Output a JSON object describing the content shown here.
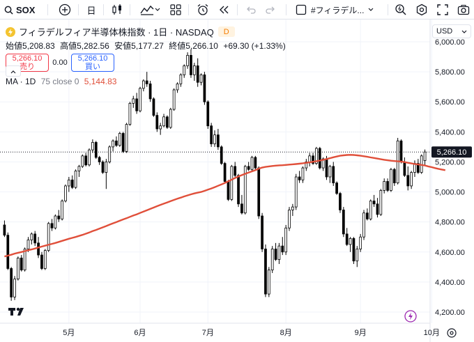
{
  "toolbar": {
    "symbol": "SOX",
    "interval": "日",
    "layout_name": "#フィラデル..."
  },
  "legend": {
    "title": "フィラデルフィア半導体株指数 · 1日 · NASDAQ",
    "badge": "D",
    "ohlc": {
      "open_label": "始値",
      "open": "5,208.83",
      "high_label": "高値",
      "high": "5,282.56",
      "low_label": "安値",
      "low": "5,177.27",
      "close_label": "終値",
      "close": "5,266.10",
      "change": "+69.30 (+1.33%)"
    },
    "sell_price": "5,266.10",
    "sell_label": "売り",
    "spread": "0.00",
    "buy_price": "5,266.10",
    "buy_label": "買い",
    "ma_label": "MA · 1D",
    "ma_params": "75 close 0",
    "ma_value": "5,144.83"
  },
  "currency": "USD",
  "colors": {
    "ma_line": "#e04f3a",
    "up_candle": "#ffffff",
    "down_candle": "#000000",
    "sell": "#f23645",
    "buy": "#2962ff"
  },
  "chart_data": {
    "type": "candlestick",
    "y_axis": {
      "range": [
        4120,
        6050
      ],
      "ticks": [
        "4,200.00",
        "4,400.00",
        "4,600.00",
        "4,800.00",
        "5,000.00",
        "5,200.00",
        "5,400.00",
        "5,600.00",
        "5,800.00",
        "6,000.00"
      ]
    },
    "x_axis": {
      "ticks": [
        "5月",
        "6月",
        "7月",
        "8月",
        "9月",
        "10月"
      ],
      "tick_index": [
        19,
        40,
        60,
        83,
        105,
        126
      ]
    },
    "last_price": 5266.1,
    "last_price_label": "5,266.10",
    "ma_series_name": "MA 75",
    "ma": [
      4570,
      4576,
      4582,
      4589,
      4595,
      4600,
      4606,
      4612,
      4617,
      4623,
      4630,
      4636,
      4642,
      4648,
      4654,
      4660,
      4667,
      4674,
      4681,
      4688,
      4694,
      4700,
      4707,
      4714,
      4722,
      4730,
      4739,
      4747,
      4756,
      4764,
      4773,
      4782,
      4791,
      4799,
      4808,
      4817,
      4825,
      4834,
      4843,
      4851,
      4860,
      4869,
      4878,
      4887,
      4896,
      4905,
      4914,
      4922,
      4930,
      4939,
      4947,
      4955,
      4962,
      4970,
      4977,
      4984,
      4990,
      4995,
      5000,
      5007,
      5015,
      5023,
      5032,
      5041,
      5050,
      5060,
      5071,
      5082,
      5093,
      5103,
      5112,
      5121,
      5129,
      5137,
      5145,
      5155,
      5162,
      5167,
      5170,
      5173,
      5175,
      5177,
      5178,
      5180,
      5182,
      5184,
      5186,
      5188,
      5191,
      5194,
      5197,
      5201,
      5205,
      5209,
      5214,
      5219,
      5225,
      5231,
      5236,
      5241,
      5244,
      5246,
      5247,
      5246,
      5244,
      5241,
      5238,
      5234,
      5230,
      5226,
      5222,
      5218,
      5214,
      5211,
      5208,
      5206,
      5204,
      5202,
      5199,
      5194,
      5190,
      5186,
      5183,
      5180,
      5176,
      5170,
      5165,
      5159,
      5154,
      5149,
      5145
    ],
    "candles": [
      [
        4780,
        4810,
        4700,
        4712
      ],
      [
        4712,
        4730,
        4480,
        4490
      ],
      [
        4490,
        4500,
        4275,
        4300
      ],
      [
        4300,
        4440,
        4280,
        4420
      ],
      [
        4420,
        4570,
        4410,
        4560
      ],
      [
        4560,
        4580,
        4470,
        4480
      ],
      [
        4480,
        4630,
        4470,
        4620
      ],
      [
        4620,
        4700,
        4600,
        4680
      ],
      [
        4680,
        4730,
        4650,
        4720
      ],
      [
        4720,
        4740,
        4640,
        4660
      ],
      [
        4660,
        4700,
        4560,
        4580
      ],
      [
        4580,
        4600,
        4480,
        4490
      ],
      [
        4490,
        4620,
        4480,
        4610
      ],
      [
        4610,
        4800,
        4600,
        4790
      ],
      [
        4790,
        4820,
        4740,
        4760
      ],
      [
        4760,
        4850,
        4750,
        4840
      ],
      [
        4840,
        4880,
        4800,
        4820
      ],
      [
        4820,
        4950,
        4810,
        4940
      ],
      [
        4940,
        5050,
        4930,
        5040
      ],
      [
        5040,
        5100,
        5000,
        5080
      ],
      [
        5080,
        5110,
        5020,
        5030
      ],
      [
        5030,
        5150,
        5020,
        5140
      ],
      [
        5140,
        5180,
        5100,
        5170
      ],
      [
        5170,
        5250,
        5160,
        5240
      ],
      [
        5240,
        5260,
        5170,
        5180
      ],
      [
        5180,
        5290,
        5170,
        5280
      ],
      [
        5280,
        5350,
        5260,
        5330
      ],
      [
        5330,
        5340,
        5220,
        5230
      ],
      [
        5230,
        5240,
        5180,
        5200
      ],
      [
        5200,
        5210,
        5120,
        5130
      ],
      [
        5130,
        5220,
        5020,
        5200
      ],
      [
        5200,
        5310,
        5190,
        5300
      ],
      [
        5300,
        5350,
        5270,
        5340
      ],
      [
        5340,
        5370,
        5300,
        5310
      ],
      [
        5310,
        5400,
        5300,
        5390
      ],
      [
        5390,
        5400,
        5260,
        5270
      ],
      [
        5270,
        5460,
        5260,
        5450
      ],
      [
        5450,
        5600,
        5440,
        5590
      ],
      [
        5590,
        5640,
        5560,
        5620
      ],
      [
        5620,
        5660,
        5520,
        5540
      ],
      [
        5540,
        5700,
        5530,
        5690
      ],
      [
        5690,
        5750,
        5670,
        5740
      ],
      [
        5740,
        5800,
        5700,
        5720
      ],
      [
        5720,
        5740,
        5600,
        5620
      ],
      [
        5620,
        5630,
        5500,
        5510
      ],
      [
        5510,
        5530,
        5400,
        5420
      ],
      [
        5420,
        5460,
        5380,
        5440
      ],
      [
        5440,
        5520,
        5430,
        5500
      ],
      [
        5500,
        5510,
        5420,
        5430
      ],
      [
        5430,
        5560,
        5420,
        5550
      ],
      [
        5550,
        5690,
        5540,
        5680
      ],
      [
        5680,
        5730,
        5660,
        5720
      ],
      [
        5720,
        5790,
        5700,
        5780
      ],
      [
        5780,
        5850,
        5760,
        5840
      ],
      [
        5840,
        5930,
        5820,
        5910
      ],
      [
        5910,
        5950,
        5760,
        5780
      ],
      [
        5780,
        5860,
        5740,
        5840
      ],
      [
        5840,
        5890,
        5700,
        5730
      ],
      [
        5730,
        5790,
        5710,
        5780
      ],
      [
        5780,
        5800,
        5580,
        5600
      ],
      [
        5600,
        5610,
        5420,
        5440
      ],
      [
        5440,
        5460,
        5300,
        5320
      ],
      [
        5320,
        5410,
        5300,
        5380
      ],
      [
        5380,
        5420,
        5280,
        5300
      ],
      [
        5300,
        5310,
        5180,
        5190
      ],
      [
        5190,
        5200,
        5060,
        5070
      ],
      [
        5070,
        5080,
        4940,
        4950
      ],
      [
        4950,
        5180,
        4940,
        5170
      ],
      [
        5170,
        5200,
        5100,
        5110
      ],
      [
        5110,
        5120,
        4900,
        4920
      ],
      [
        4920,
        4980,
        4850,
        4860
      ],
      [
        4860,
        5180,
        4850,
        5170
      ],
      [
        5170,
        5200,
        5140,
        5150
      ],
      [
        5150,
        5240,
        5140,
        5230
      ],
      [
        5230,
        5240,
        5150,
        5160
      ],
      [
        5160,
        5170,
        4820,
        4840
      ],
      [
        4840,
        4860,
        4600,
        4620
      ],
      [
        4620,
        4650,
        4300,
        4320
      ],
      [
        4320,
        4500,
        4300,
        4480
      ],
      [
        4480,
        4640,
        4460,
        4620
      ],
      [
        4620,
        4660,
        4540,
        4550
      ],
      [
        4550,
        4660,
        4520,
        4640
      ],
      [
        4640,
        4700,
        4580,
        4600
      ],
      [
        4600,
        4780,
        4580,
        4760
      ],
      [
        4760,
        4900,
        4740,
        4880
      ],
      [
        4880,
        4920,
        4840,
        4900
      ],
      [
        4900,
        5120,
        4880,
        5100
      ],
      [
        5100,
        5140,
        5060,
        5080
      ],
      [
        5080,
        5170,
        5060,
        5160
      ],
      [
        5160,
        5220,
        5140,
        5200
      ],
      [
        5200,
        5260,
        5170,
        5240
      ],
      [
        5240,
        5260,
        5180,
        5190
      ],
      [
        5190,
        5300,
        5180,
        5290
      ],
      [
        5290,
        5300,
        5150,
        5160
      ],
      [
        5160,
        5230,
        5140,
        5220
      ],
      [
        5220,
        5240,
        5080,
        5100
      ],
      [
        5100,
        5180,
        5060,
        5170
      ],
      [
        5170,
        5200,
        5040,
        5060
      ],
      [
        5060,
        5070,
        4980,
        4990
      ],
      [
        4990,
        5000,
        4860,
        4880
      ],
      [
        4880,
        4900,
        4700,
        4720
      ],
      [
        4720,
        4760,
        4640,
        4650
      ],
      [
        4650,
        4700,
        4600,
        4690
      ],
      [
        4690,
        4700,
        4520,
        4540
      ],
      [
        4540,
        4640,
        4500,
        4620
      ],
      [
        4620,
        4720,
        4600,
        4700
      ],
      [
        4700,
        4880,
        4680,
        4860
      ],
      [
        4860,
        4890,
        4810,
        4820
      ],
      [
        4820,
        4950,
        4810,
        4940
      ],
      [
        4940,
        4980,
        4900,
        4920
      ],
      [
        4920,
        4960,
        4830,
        4850
      ],
      [
        4850,
        5020,
        4840,
        5010
      ],
      [
        5010,
        5090,
        4990,
        5070
      ],
      [
        5070,
        5090,
        5000,
        5010
      ],
      [
        5010,
        5160,
        5000,
        5150
      ],
      [
        5150,
        5160,
        5040,
        5060
      ],
      [
        5060,
        5360,
        5050,
        5340
      ],
      [
        5340,
        5350,
        5190,
        5200
      ],
      [
        5200,
        5230,
        5100,
        5110
      ],
      [
        5110,
        5170,
        5010,
        5040
      ],
      [
        5040,
        5140,
        5020,
        5130
      ],
      [
        5130,
        5210,
        5100,
        5190
      ],
      [
        5190,
        5220,
        5120,
        5130
      ],
      [
        5130,
        5250,
        5120,
        5240
      ],
      [
        5208.83,
        5282.56,
        5177.27,
        5266.1
      ]
    ]
  }
}
